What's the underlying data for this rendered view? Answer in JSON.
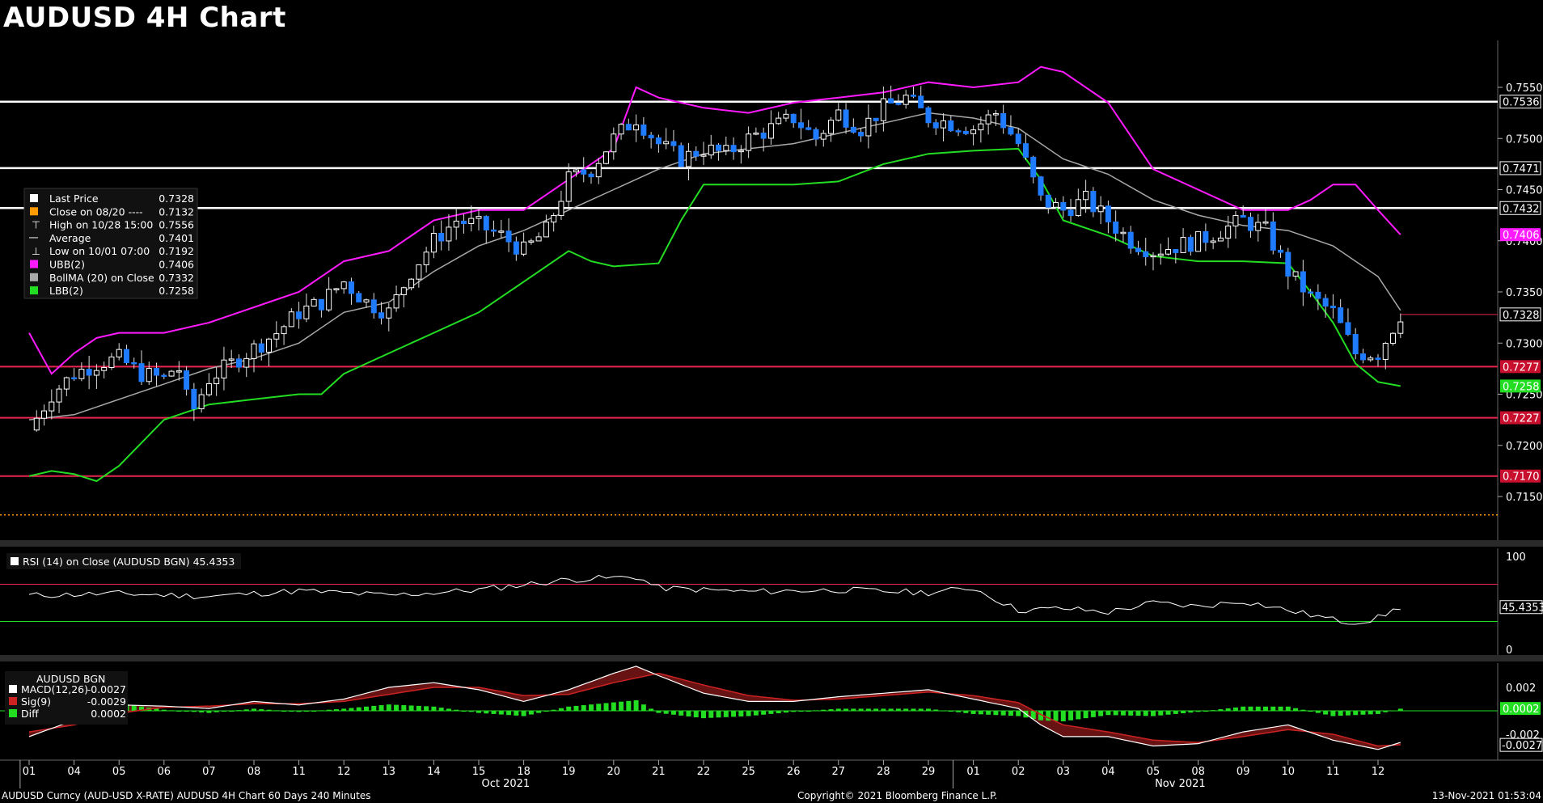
{
  "title": "AUDUSD 4H Chart",
  "colors": {
    "background": "#000000",
    "bull": "#ffffff",
    "bear": "#1f7bff",
    "ubb": "#ff1aff",
    "bollma": "#a9a9a9",
    "lbb": "#22dd22",
    "resistance": "#ffffff",
    "support": "#e8254f",
    "close_0820": "#ff9900",
    "rsi_line": "#ffffff",
    "macd_line": "#ffffff",
    "signal_line": "#cc2222",
    "diff_bar": "#22dd22"
  },
  "legend": {
    "items": [
      {
        "label": "Last Price",
        "value": "0.7328",
        "swatch": "#ffffff",
        "marker": "box"
      },
      {
        "label": "Close on 08/20 ----",
        "value": "0.7132",
        "swatch": "#ff9900",
        "marker": "box"
      },
      {
        "label": "High on 10/28 15:00",
        "value": "0.7556",
        "marker": "T"
      },
      {
        "label": "Average",
        "value": "0.7401",
        "marker": "dash"
      },
      {
        "label": "Low on 10/01 07:00",
        "value": "0.7192",
        "marker": "L"
      },
      {
        "label": "UBB(2)",
        "value": "0.7406",
        "swatch": "#ff1aff",
        "marker": "box"
      },
      {
        "label": "BollMA (20)  on Close",
        "value": "0.7332",
        "swatch": "#a9a9a9",
        "marker": "box"
      },
      {
        "label": "LBB(2)",
        "value": "0.7258",
        "swatch": "#22dd22",
        "marker": "box"
      }
    ]
  },
  "price_axis": {
    "ticks": [
      "0.7550",
      "0.7500",
      "0.7450",
      "0.7400",
      "0.7350",
      "0.7300",
      "0.7250",
      "0.7200",
      "0.7150"
    ],
    "hlines": [
      {
        "value": "0.7536",
        "kind": "resistance"
      },
      {
        "value": "0.7471",
        "kind": "resistance"
      },
      {
        "value": "0.7432",
        "kind": "resistance"
      },
      {
        "value": "0.7277",
        "kind": "support"
      },
      {
        "value": "0.7227",
        "kind": "support"
      },
      {
        "value": "0.7170",
        "kind": "support"
      }
    ],
    "last_label": "0.7328",
    "ubb_label": "0.7406",
    "lbb_label": "0.7258"
  },
  "rsi": {
    "legend": "RSI (14)  on Close (AUDUSD BGN) 45.4353",
    "ticks": [
      "100",
      "0"
    ],
    "value_label": "45.4353",
    "upper": 70,
    "lower": 30
  },
  "macd": {
    "legend_title": "AUDUSD BGN",
    "items": [
      {
        "label": "MACD(12,26)",
        "value": "-0.0027",
        "swatch": "#ffffff"
      },
      {
        "label": "Sig(9)",
        "value": "-0.0029",
        "swatch": "#cc2222"
      },
      {
        "label": "Diff",
        "value": "0.0002",
        "swatch": "#22dd22"
      }
    ],
    "ticks": [
      "0.002",
      "0.000",
      "-0.002"
    ],
    "diff_label": "0.0002",
    "macd_label": "-0.0027"
  },
  "x_axis": {
    "ticks": [
      "01",
      "04",
      "05",
      "06",
      "07",
      "08",
      "11",
      "12",
      "13",
      "14",
      "15",
      "18",
      "19",
      "20",
      "21",
      "22",
      "25",
      "26",
      "27",
      "28",
      "29",
      "01",
      "02",
      "03",
      "04",
      "05",
      "08",
      "09",
      "10",
      "11",
      "12"
    ],
    "months": [
      "Oct 2021",
      "Nov 2021"
    ]
  },
  "footer": {
    "left": "AUDUSD Curncy (AUD-USD X-RATE) AUDUSD 4H Chart 60 Days 240 Minutes",
    "center": "Copyright© 2021 Bloomberg Finance L.P.",
    "right": "13-Nov-2021 01:53:04"
  },
  "chart_data": {
    "type": "candlestick",
    "symbol": "AUDUSD",
    "interval": "4H",
    "ylim": [
      0.712,
      0.758
    ],
    "x": [
      "01",
      "04",
      "05",
      "06",
      "07",
      "08",
      "11",
      "12",
      "13",
      "14",
      "15",
      "18",
      "19",
      "20",
      "21",
      "22",
      "25",
      "26",
      "27",
      "28",
      "29",
      "01",
      "02",
      "03",
      "04",
      "05",
      "08",
      "09",
      "10",
      "11",
      "12"
    ],
    "close_path": [
      [
        0,
        0.7215
      ],
      [
        0.5,
        0.725
      ],
      [
        1,
        0.727
      ],
      [
        1.5,
        0.728
      ],
      [
        2,
        0.7285
      ],
      [
        2.5,
        0.727
      ],
      [
        3,
        0.7265
      ],
      [
        3.3,
        0.728
      ],
      [
        3.6,
        0.723
      ],
      [
        4,
        0.7265
      ],
      [
        4.5,
        0.728
      ],
      [
        5,
        0.7295
      ],
      [
        5.5,
        0.731
      ],
      [
        6,
        0.733
      ],
      [
        6.5,
        0.734
      ],
      [
        7,
        0.736
      ],
      [
        7.5,
        0.734
      ],
      [
        8,
        0.733
      ],
      [
        8.5,
        0.737
      ],
      [
        9,
        0.74
      ],
      [
        9.5,
        0.742
      ],
      [
        10,
        0.7415
      ],
      [
        10.5,
        0.7405
      ],
      [
        11,
        0.739
      ],
      [
        11.5,
        0.741
      ],
      [
        12,
        0.746
      ],
      [
        12.5,
        0.747
      ],
      [
        13,
        0.75
      ],
      [
        13.5,
        0.752
      ],
      [
        14,
        0.7495
      ],
      [
        14.5,
        0.748
      ],
      [
        15,
        0.749
      ],
      [
        15.5,
        0.7485
      ],
      [
        16,
        0.75
      ],
      [
        16.5,
        0.751
      ],
      [
        17,
        0.752
      ],
      [
        17.5,
        0.75
      ],
      [
        18,
        0.7525
      ],
      [
        18.5,
        0.751
      ],
      [
        19,
        0.753
      ],
      [
        19.5,
        0.754
      ],
      [
        20,
        0.752
      ],
      [
        20.5,
        0.7515
      ],
      [
        21,
        0.751
      ],
      [
        21.5,
        0.7525
      ],
      [
        22,
        0.7495
      ],
      [
        22.5,
        0.744
      ],
      [
        23,
        0.743
      ],
      [
        23.5,
        0.744
      ],
      [
        24,
        0.742
      ],
      [
        24.5,
        0.74
      ],
      [
        25,
        0.739
      ],
      [
        25.5,
        0.7395
      ],
      [
        26,
        0.74
      ],
      [
        26.5,
        0.741
      ],
      [
        27,
        0.742
      ],
      [
        27.5,
        0.741
      ],
      [
        28,
        0.737
      ],
      [
        28.5,
        0.7345
      ],
      [
        29,
        0.733
      ],
      [
        29.5,
        0.729
      ],
      [
        30,
        0.729
      ],
      [
        30.5,
        0.7328
      ]
    ],
    "ubb_path": [
      [
        0,
        0.731
      ],
      [
        0.5,
        0.727
      ],
      [
        1,
        0.729
      ],
      [
        1.5,
        0.7305
      ],
      [
        2,
        0.731
      ],
      [
        3,
        0.731
      ],
      [
        4,
        0.732
      ],
      [
        5,
        0.7335
      ],
      [
        6,
        0.735
      ],
      [
        7,
        0.738
      ],
      [
        8,
        0.739
      ],
      [
        9,
        0.742
      ],
      [
        10,
        0.743
      ],
      [
        11,
        0.743
      ],
      [
        12,
        0.746
      ],
      [
        13,
        0.749
      ],
      [
        13.5,
        0.755
      ],
      [
        14,
        0.754
      ],
      [
        15,
        0.753
      ],
      [
        16,
        0.7525
      ],
      [
        17,
        0.7535
      ],
      [
        18,
        0.754
      ],
      [
        19,
        0.7545
      ],
      [
        20,
        0.7555
      ],
      [
        21,
        0.755
      ],
      [
        22,
        0.7555
      ],
      [
        22.5,
        0.757
      ],
      [
        23,
        0.7565
      ],
      [
        24,
        0.7535
      ],
      [
        25,
        0.747
      ],
      [
        26,
        0.745
      ],
      [
        27,
        0.743
      ],
      [
        28,
        0.743
      ],
      [
        28.5,
        0.744
      ],
      [
        29,
        0.7455
      ],
      [
        29.5,
        0.7455
      ],
      [
        30,
        0.743
      ],
      [
        30.5,
        0.7406
      ]
    ],
    "bollma_path": [
      [
        0,
        0.7225
      ],
      [
        1,
        0.723
      ],
      [
        2,
        0.7245
      ],
      [
        3,
        0.726
      ],
      [
        4,
        0.7275
      ],
      [
        5,
        0.7285
      ],
      [
        6,
        0.73
      ],
      [
        7,
        0.733
      ],
      [
        8,
        0.734
      ],
      [
        9,
        0.737
      ],
      [
        10,
        0.7395
      ],
      [
        11,
        0.741
      ],
      [
        12,
        0.743
      ],
      [
        13,
        0.745
      ],
      [
        14,
        0.747
      ],
      [
        15,
        0.7485
      ],
      [
        16,
        0.749
      ],
      [
        17,
        0.7495
      ],
      [
        18,
        0.7505
      ],
      [
        19,
        0.7515
      ],
      [
        20,
        0.7525
      ],
      [
        21,
        0.752
      ],
      [
        22,
        0.751
      ],
      [
        23,
        0.748
      ],
      [
        24,
        0.7465
      ],
      [
        25,
        0.744
      ],
      [
        26,
        0.7425
      ],
      [
        27,
        0.7415
      ],
      [
        28,
        0.741
      ],
      [
        29,
        0.7395
      ],
      [
        30,
        0.7365
      ],
      [
        30.5,
        0.7332
      ]
    ],
    "lbb_path": [
      [
        0,
        0.717
      ],
      [
        0.5,
        0.7175
      ],
      [
        1,
        0.7172
      ],
      [
        1.5,
        0.7165
      ],
      [
        2,
        0.718
      ],
      [
        3,
        0.7225
      ],
      [
        4,
        0.724
      ],
      [
        5,
        0.7245
      ],
      [
        6,
        0.725
      ],
      [
        6.5,
        0.725
      ],
      [
        7,
        0.727
      ],
      [
        8,
        0.729
      ],
      [
        9,
        0.731
      ],
      [
        10,
        0.733
      ],
      [
        11,
        0.736
      ],
      [
        12,
        0.739
      ],
      [
        12.5,
        0.738
      ],
      [
        13,
        0.7375
      ],
      [
        14,
        0.7378
      ],
      [
        14.5,
        0.742
      ],
      [
        15,
        0.7455
      ],
      [
        16,
        0.7455
      ],
      [
        17,
        0.7455
      ],
      [
        18,
        0.7458
      ],
      [
        19,
        0.7475
      ],
      [
        20,
        0.7485
      ],
      [
        21,
        0.7488
      ],
      [
        22,
        0.749
      ],
      [
        22.5,
        0.746
      ],
      [
        23,
        0.742
      ],
      [
        24,
        0.7405
      ],
      [
        25,
        0.7385
      ],
      [
        26,
        0.738
      ],
      [
        27,
        0.738
      ],
      [
        28,
        0.7378
      ],
      [
        28.5,
        0.735
      ],
      [
        29,
        0.732
      ],
      [
        29.5,
        0.728
      ],
      [
        30,
        0.7262
      ],
      [
        30.5,
        0.7258
      ]
    ],
    "rsi_path": [
      [
        0,
        58
      ],
      [
        2,
        60
      ],
      [
        4,
        57
      ],
      [
        6,
        63
      ],
      [
        8,
        58
      ],
      [
        10,
        64
      ],
      [
        12,
        75
      ],
      [
        13.5,
        78
      ],
      [
        14,
        66
      ],
      [
        16,
        62
      ],
      [
        18,
        64
      ],
      [
        20,
        61
      ],
      [
        21,
        66
      ],
      [
        22,
        42
      ],
      [
        23,
        44
      ],
      [
        24,
        40
      ],
      [
        25,
        50
      ],
      [
        26,
        46
      ],
      [
        27,
        52
      ],
      [
        28,
        42
      ],
      [
        29,
        32
      ],
      [
        29.5,
        28
      ],
      [
        30,
        34
      ],
      [
        30.5,
        45.4353
      ]
    ],
    "macd_path": [
      [
        0,
        -0.0022
      ],
      [
        1,
        -0.0008
      ],
      [
        2,
        0.0005
      ],
      [
        3,
        0.0004
      ],
      [
        4,
        0.0002
      ],
      [
        5,
        0.0008
      ],
      [
        6,
        0.0005
      ],
      [
        7,
        0.001
      ],
      [
        8,
        0.002
      ],
      [
        9,
        0.0024
      ],
      [
        10,
        0.0018
      ],
      [
        11,
        0.0008
      ],
      [
        12,
        0.0018
      ],
      [
        13,
        0.0032
      ],
      [
        13.5,
        0.0038
      ],
      [
        14,
        0.003
      ],
      [
        15,
        0.0015
      ],
      [
        16,
        0.0008
      ],
      [
        17,
        0.0008
      ],
      [
        18,
        0.0012
      ],
      [
        19,
        0.0015
      ],
      [
        20,
        0.0018
      ],
      [
        21,
        0.001
      ],
      [
        22,
        0.0002
      ],
      [
        22.5,
        -0.0012
      ],
      [
        23,
        -0.0022
      ],
      [
        24,
        -0.0022
      ],
      [
        25,
        -0.003
      ],
      [
        26,
        -0.0028
      ],
      [
        27,
        -0.0018
      ],
      [
        27.5,
        -0.0015
      ],
      [
        28,
        -0.0012
      ],
      [
        29,
        -0.0025
      ],
      [
        30,
        -0.0033
      ],
      [
        30.5,
        -0.0027
      ]
    ],
    "signal_path": [
      [
        0,
        -0.0018
      ],
      [
        1,
        -0.0012
      ],
      [
        2,
        -0.0002
      ],
      [
        3,
        0.0003
      ],
      [
        4,
        0.0004
      ],
      [
        5,
        0.0006
      ],
      [
        6,
        0.0006
      ],
      [
        7,
        0.0008
      ],
      [
        8,
        0.0014
      ],
      [
        9,
        0.002
      ],
      [
        10,
        0.002
      ],
      [
        11,
        0.0013
      ],
      [
        12,
        0.0014
      ],
      [
        13,
        0.0024
      ],
      [
        14,
        0.0032
      ],
      [
        15,
        0.0022
      ],
      [
        16,
        0.0013
      ],
      [
        17,
        0.0009
      ],
      [
        18,
        0.001
      ],
      [
        19,
        0.0013
      ],
      [
        20,
        0.0016
      ],
      [
        21,
        0.0013
      ],
      [
        22,
        0.0007
      ],
      [
        22.5,
        -0.0003
      ],
      [
        23,
        -0.0012
      ],
      [
        24,
        -0.0018
      ],
      [
        25,
        -0.0025
      ],
      [
        26,
        -0.0027
      ],
      [
        27,
        -0.0022
      ],
      [
        28,
        -0.0016
      ],
      [
        29,
        -0.002
      ],
      [
        30,
        -0.003
      ],
      [
        30.5,
        -0.0029
      ]
    ]
  }
}
